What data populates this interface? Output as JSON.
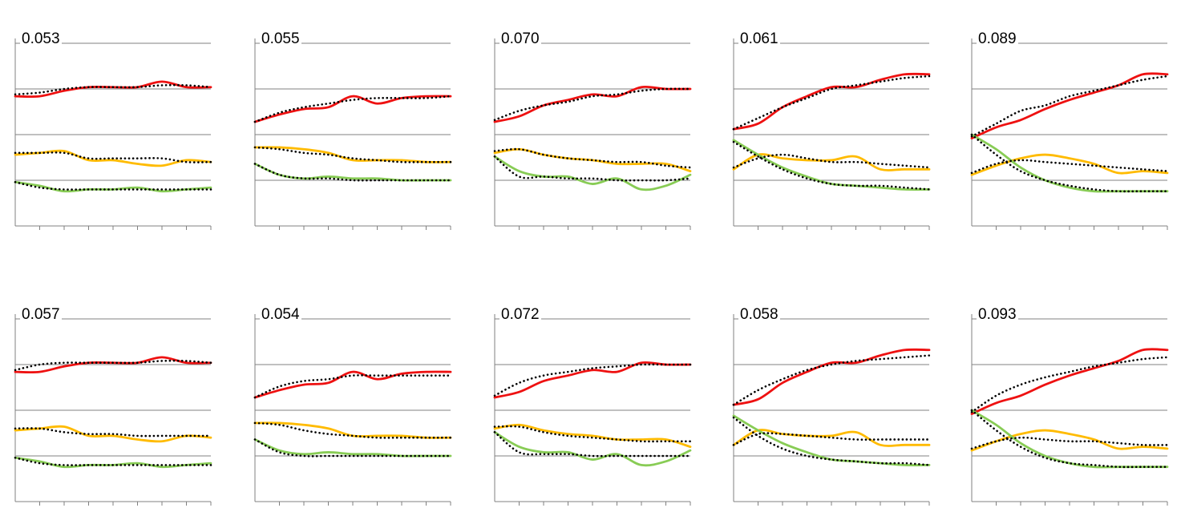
{
  "colors": {
    "red": "#ee1111",
    "yellow": "#ffbb00",
    "green": "#88cc55",
    "predicted": "#000000",
    "axis": "#808080"
  },
  "chart_data": [
    {
      "type": "line",
      "title": "0.053",
      "grid": "horizontal",
      "ylim": [
        0,
        1
      ],
      "x": [
        0,
        1,
        2,
        3,
        4,
        5,
        6,
        7,
        8
      ],
      "series": [
        {
          "color": "red",
          "style": "solid",
          "values": [
            0.71,
            0.71,
            0.74,
            0.76,
            0.76,
            0.76,
            0.79,
            0.76,
            0.76
          ]
        },
        {
          "color": "red",
          "style": "dotted",
          "values": [
            0.72,
            0.73,
            0.75,
            0.76,
            0.76,
            0.76,
            0.77,
            0.77,
            0.76
          ]
        },
        {
          "color": "yellow",
          "style": "solid",
          "values": [
            0.39,
            0.4,
            0.41,
            0.36,
            0.36,
            0.34,
            0.33,
            0.36,
            0.35
          ]
        },
        {
          "color": "yellow",
          "style": "dotted",
          "values": [
            0.4,
            0.4,
            0.4,
            0.37,
            0.37,
            0.37,
            0.37,
            0.35,
            0.35
          ]
        },
        {
          "color": "green",
          "style": "solid",
          "values": [
            0.24,
            0.22,
            0.19,
            0.2,
            0.2,
            0.21,
            0.19,
            0.2,
            0.21
          ]
        },
        {
          "color": "green",
          "style": "dotted",
          "values": [
            0.24,
            0.21,
            0.2,
            0.2,
            0.2,
            0.2,
            0.2,
            0.2,
            0.2
          ]
        }
      ]
    },
    {
      "type": "line",
      "title": "0.055",
      "grid": "horizontal",
      "ylim": [
        0,
        1
      ],
      "x": [
        0,
        1,
        2,
        3,
        4,
        5,
        6,
        7,
        8
      ],
      "series": [
        {
          "color": "red",
          "style": "solid",
          "values": [
            0.57,
            0.61,
            0.64,
            0.65,
            0.71,
            0.67,
            0.7,
            0.71,
            0.71
          ]
        },
        {
          "color": "red",
          "style": "dotted",
          "values": [
            0.57,
            0.62,
            0.65,
            0.67,
            0.69,
            0.7,
            0.7,
            0.7,
            0.71
          ]
        },
        {
          "color": "yellow",
          "style": "solid",
          "values": [
            0.43,
            0.43,
            0.42,
            0.4,
            0.36,
            0.36,
            0.36,
            0.35,
            0.35
          ]
        },
        {
          "color": "yellow",
          "style": "dotted",
          "values": [
            0.43,
            0.42,
            0.4,
            0.39,
            0.37,
            0.36,
            0.35,
            0.35,
            0.35
          ]
        },
        {
          "color": "green",
          "style": "solid",
          "values": [
            0.34,
            0.28,
            0.26,
            0.27,
            0.26,
            0.26,
            0.25,
            0.25,
            0.25
          ]
        },
        {
          "color": "green",
          "style": "dotted",
          "values": [
            0.34,
            0.28,
            0.26,
            0.26,
            0.25,
            0.25,
            0.25,
            0.25,
            0.25
          ]
        }
      ]
    },
    {
      "type": "line",
      "title": "0.070",
      "grid": "horizontal",
      "ylim": [
        0,
        1
      ],
      "x": [
        0,
        1,
        2,
        3,
        4,
        5,
        6,
        7,
        8
      ],
      "series": [
        {
          "color": "red",
          "style": "solid",
          "values": [
            0.57,
            0.6,
            0.66,
            0.69,
            0.72,
            0.71,
            0.76,
            0.75,
            0.75
          ]
        },
        {
          "color": "red",
          "style": "dotted",
          "values": [
            0.58,
            0.63,
            0.66,
            0.68,
            0.71,
            0.72,
            0.74,
            0.75,
            0.75
          ]
        },
        {
          "color": "yellow",
          "style": "solid",
          "values": [
            0.4,
            0.42,
            0.39,
            0.37,
            0.36,
            0.34,
            0.34,
            0.34,
            0.3
          ]
        },
        {
          "color": "yellow",
          "style": "dotted",
          "values": [
            0.41,
            0.42,
            0.39,
            0.37,
            0.36,
            0.35,
            0.35,
            0.33,
            0.32
          ]
        },
        {
          "color": "green",
          "style": "solid",
          "values": [
            0.38,
            0.3,
            0.27,
            0.27,
            0.23,
            0.26,
            0.2,
            0.22,
            0.28
          ]
        },
        {
          "color": "green",
          "style": "dotted",
          "values": [
            0.38,
            0.27,
            0.27,
            0.26,
            0.26,
            0.25,
            0.25,
            0.25,
            0.26
          ]
        }
      ]
    },
    {
      "type": "line",
      "title": "0.061",
      "grid": "horizontal",
      "ylim": [
        0,
        1
      ],
      "x": [
        0,
        1,
        2,
        3,
        4,
        5,
        6,
        7,
        8
      ],
      "series": [
        {
          "color": "red",
          "style": "solid",
          "values": [
            0.53,
            0.56,
            0.65,
            0.71,
            0.76,
            0.76,
            0.8,
            0.83,
            0.83
          ]
        },
        {
          "color": "red",
          "style": "dotted",
          "values": [
            0.53,
            0.59,
            0.65,
            0.7,
            0.75,
            0.77,
            0.79,
            0.81,
            0.82
          ]
        },
        {
          "color": "yellow",
          "style": "solid",
          "values": [
            0.31,
            0.39,
            0.37,
            0.36,
            0.36,
            0.38,
            0.31,
            0.31,
            0.31
          ]
        },
        {
          "color": "yellow",
          "style": "dotted",
          "values": [
            0.32,
            0.37,
            0.39,
            0.37,
            0.35,
            0.35,
            0.34,
            0.33,
            0.32
          ]
        },
        {
          "color": "green",
          "style": "solid",
          "values": [
            0.47,
            0.39,
            0.32,
            0.27,
            0.23,
            0.22,
            0.21,
            0.2,
            0.2
          ]
        },
        {
          "color": "green",
          "style": "dotted",
          "values": [
            0.46,
            0.38,
            0.31,
            0.26,
            0.23,
            0.22,
            0.22,
            0.21,
            0.2
          ]
        }
      ]
    },
    {
      "type": "line",
      "title": "0.089",
      "grid": "horizontal",
      "ylim": [
        0,
        1
      ],
      "x": [
        0,
        1,
        2,
        3,
        4,
        5,
        6,
        7,
        8
      ],
      "series": [
        {
          "color": "red",
          "style": "solid",
          "values": [
            0.48,
            0.54,
            0.58,
            0.64,
            0.69,
            0.73,
            0.77,
            0.83,
            0.83
          ]
        },
        {
          "color": "red",
          "style": "dotted",
          "values": [
            0.49,
            0.56,
            0.63,
            0.66,
            0.71,
            0.74,
            0.77,
            0.8,
            0.82
          ]
        },
        {
          "color": "yellow",
          "style": "solid",
          "values": [
            0.28,
            0.33,
            0.37,
            0.39,
            0.37,
            0.34,
            0.29,
            0.3,
            0.29
          ]
        },
        {
          "color": "yellow",
          "style": "dotted",
          "values": [
            0.29,
            0.34,
            0.36,
            0.35,
            0.34,
            0.33,
            0.32,
            0.31,
            0.3
          ]
        },
        {
          "color": "green",
          "style": "solid",
          "values": [
            0.5,
            0.42,
            0.32,
            0.25,
            0.21,
            0.19,
            0.19,
            0.19,
            0.19
          ]
        },
        {
          "color": "green",
          "style": "dotted",
          "values": [
            0.5,
            0.39,
            0.3,
            0.25,
            0.22,
            0.2,
            0.19,
            0.19,
            0.19
          ]
        }
      ]
    },
    {
      "type": "line",
      "title": "0.057",
      "grid": "horizontal",
      "ylim": [
        0,
        1
      ],
      "x": [
        0,
        1,
        2,
        3,
        4,
        5,
        6,
        7,
        8
      ],
      "series": [
        {
          "color": "red",
          "style": "solid",
          "values": [
            0.71,
            0.71,
            0.74,
            0.76,
            0.76,
            0.76,
            0.79,
            0.76,
            0.76
          ]
        },
        {
          "color": "red",
          "style": "dotted",
          "values": [
            0.72,
            0.75,
            0.76,
            0.76,
            0.76,
            0.76,
            0.77,
            0.77,
            0.76
          ]
        },
        {
          "color": "yellow",
          "style": "solid",
          "values": [
            0.39,
            0.4,
            0.41,
            0.36,
            0.36,
            0.34,
            0.33,
            0.36,
            0.35
          ]
        },
        {
          "color": "yellow",
          "style": "dotted",
          "values": [
            0.4,
            0.4,
            0.38,
            0.37,
            0.37,
            0.36,
            0.36,
            0.36,
            0.36
          ]
        },
        {
          "color": "green",
          "style": "solid",
          "values": [
            0.24,
            0.22,
            0.19,
            0.2,
            0.2,
            0.21,
            0.19,
            0.2,
            0.21
          ]
        },
        {
          "color": "green",
          "style": "dotted",
          "values": [
            0.24,
            0.21,
            0.2,
            0.2,
            0.2,
            0.2,
            0.2,
            0.2,
            0.2
          ]
        }
      ]
    },
    {
      "type": "line",
      "title": "0.054",
      "grid": "horizontal",
      "ylim": [
        0,
        1
      ],
      "x": [
        0,
        1,
        2,
        3,
        4,
        5,
        6,
        7,
        8
      ],
      "series": [
        {
          "color": "red",
          "style": "solid",
          "values": [
            0.57,
            0.61,
            0.64,
            0.65,
            0.71,
            0.67,
            0.7,
            0.71,
            0.71
          ]
        },
        {
          "color": "red",
          "style": "dotted",
          "values": [
            0.57,
            0.63,
            0.66,
            0.67,
            0.69,
            0.69,
            0.69,
            0.69,
            0.69
          ]
        },
        {
          "color": "yellow",
          "style": "solid",
          "values": [
            0.43,
            0.43,
            0.42,
            0.4,
            0.36,
            0.36,
            0.36,
            0.35,
            0.35
          ]
        },
        {
          "color": "yellow",
          "style": "dotted",
          "values": [
            0.43,
            0.42,
            0.39,
            0.37,
            0.36,
            0.35,
            0.35,
            0.35,
            0.35
          ]
        },
        {
          "color": "green",
          "style": "solid",
          "values": [
            0.34,
            0.28,
            0.26,
            0.27,
            0.26,
            0.26,
            0.25,
            0.25,
            0.25
          ]
        },
        {
          "color": "green",
          "style": "dotted",
          "values": [
            0.34,
            0.27,
            0.25,
            0.25,
            0.25,
            0.25,
            0.25,
            0.25,
            0.25
          ]
        }
      ]
    },
    {
      "type": "line",
      "title": "0.072",
      "grid": "horizontal",
      "ylim": [
        0,
        1
      ],
      "x": [
        0,
        1,
        2,
        3,
        4,
        5,
        6,
        7,
        8
      ],
      "series": [
        {
          "color": "red",
          "style": "solid",
          "values": [
            0.57,
            0.6,
            0.66,
            0.69,
            0.72,
            0.71,
            0.76,
            0.75,
            0.75
          ]
        },
        {
          "color": "red",
          "style": "dotted",
          "values": [
            0.58,
            0.65,
            0.69,
            0.71,
            0.73,
            0.74,
            0.75,
            0.75,
            0.75
          ]
        },
        {
          "color": "yellow",
          "style": "solid",
          "values": [
            0.4,
            0.42,
            0.39,
            0.37,
            0.36,
            0.34,
            0.34,
            0.34,
            0.3
          ]
        },
        {
          "color": "yellow",
          "style": "dotted",
          "values": [
            0.41,
            0.41,
            0.38,
            0.36,
            0.35,
            0.34,
            0.33,
            0.33,
            0.33
          ]
        },
        {
          "color": "green",
          "style": "solid",
          "values": [
            0.38,
            0.3,
            0.27,
            0.27,
            0.23,
            0.26,
            0.2,
            0.22,
            0.28
          ]
        },
        {
          "color": "green",
          "style": "dotted",
          "values": [
            0.38,
            0.27,
            0.26,
            0.26,
            0.25,
            0.25,
            0.25,
            0.25,
            0.25
          ]
        }
      ]
    },
    {
      "type": "line",
      "title": "0.058",
      "grid": "horizontal",
      "ylim": [
        0,
        1
      ],
      "x": [
        0,
        1,
        2,
        3,
        4,
        5,
        6,
        7,
        8
      ],
      "series": [
        {
          "color": "red",
          "style": "solid",
          "values": [
            0.53,
            0.56,
            0.65,
            0.71,
            0.76,
            0.76,
            0.8,
            0.83,
            0.83
          ]
        },
        {
          "color": "red",
          "style": "dotted",
          "values": [
            0.53,
            0.61,
            0.67,
            0.72,
            0.75,
            0.77,
            0.78,
            0.79,
            0.8
          ]
        },
        {
          "color": "yellow",
          "style": "solid",
          "values": [
            0.31,
            0.39,
            0.37,
            0.36,
            0.36,
            0.38,
            0.31,
            0.31,
            0.31
          ]
        },
        {
          "color": "yellow",
          "style": "dotted",
          "values": [
            0.31,
            0.37,
            0.37,
            0.36,
            0.35,
            0.34,
            0.34,
            0.34,
            0.34
          ]
        },
        {
          "color": "green",
          "style": "solid",
          "values": [
            0.47,
            0.39,
            0.32,
            0.27,
            0.23,
            0.22,
            0.21,
            0.2,
            0.2
          ]
        },
        {
          "color": "green",
          "style": "dotted",
          "values": [
            0.46,
            0.36,
            0.29,
            0.25,
            0.23,
            0.22,
            0.21,
            0.21,
            0.2
          ]
        }
      ]
    },
    {
      "type": "line",
      "title": "0.093",
      "grid": "horizontal",
      "ylim": [
        0,
        1
      ],
      "x": [
        0,
        1,
        2,
        3,
        4,
        5,
        6,
        7,
        8
      ],
      "series": [
        {
          "color": "red",
          "style": "solid",
          "values": [
            0.48,
            0.54,
            0.58,
            0.64,
            0.69,
            0.73,
            0.77,
            0.83,
            0.83
          ]
        },
        {
          "color": "red",
          "style": "dotted",
          "values": [
            0.49,
            0.58,
            0.64,
            0.68,
            0.71,
            0.74,
            0.76,
            0.78,
            0.79
          ]
        },
        {
          "color": "yellow",
          "style": "solid",
          "values": [
            0.28,
            0.33,
            0.37,
            0.39,
            0.37,
            0.34,
            0.29,
            0.3,
            0.29
          ]
        },
        {
          "color": "yellow",
          "style": "dotted",
          "values": [
            0.29,
            0.33,
            0.35,
            0.34,
            0.33,
            0.33,
            0.32,
            0.31,
            0.31
          ]
        },
        {
          "color": "green",
          "style": "solid",
          "values": [
            0.5,
            0.42,
            0.32,
            0.25,
            0.21,
            0.19,
            0.19,
            0.19,
            0.19
          ]
        },
        {
          "color": "green",
          "style": "dotted",
          "values": [
            0.5,
            0.39,
            0.3,
            0.24,
            0.21,
            0.2,
            0.19,
            0.19,
            0.19
          ]
        }
      ]
    }
  ]
}
